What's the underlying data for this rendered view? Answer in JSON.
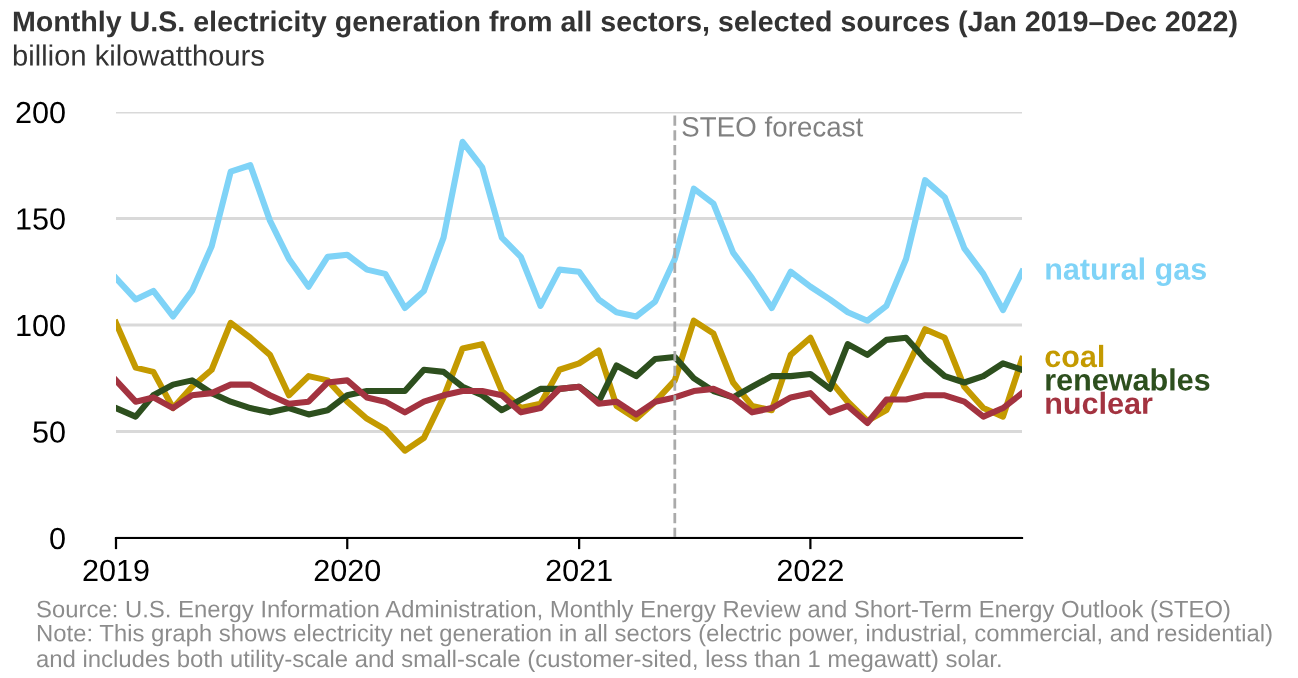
{
  "chart_data": {
    "type": "line",
    "title": "Monthly U.S. electricity generation from all sectors, selected sources (Jan 2019–Dec 2022)",
    "ylabel": "billion kilowatthours",
    "x": [
      "2019-01",
      "2019-02",
      "2019-03",
      "2019-04",
      "2019-05",
      "2019-06",
      "2019-07",
      "2019-08",
      "2019-09",
      "2019-10",
      "2019-11",
      "2019-12",
      "2020-01",
      "2020-02",
      "2020-03",
      "2020-04",
      "2020-05",
      "2020-06",
      "2020-07",
      "2020-08",
      "2020-09",
      "2020-10",
      "2020-11",
      "2020-12",
      "2021-01",
      "2021-02",
      "2021-03",
      "2021-04",
      "2021-05",
      "2021-06",
      "2021-07",
      "2021-08",
      "2021-09",
      "2021-10",
      "2021-11",
      "2021-12",
      "2022-01",
      "2022-02",
      "2022-03",
      "2022-04",
      "2022-05",
      "2022-06",
      "2022-07",
      "2022-08",
      "2022-09",
      "2022-10",
      "2022-11",
      "2022-12"
    ],
    "series": [
      {
        "name": "natural gas",
        "color": "#7fd3f7",
        "values": [
          122,
          112,
          116,
          104,
          116,
          137,
          172,
          175,
          149,
          131,
          118,
          132,
          133,
          126,
          124,
          108,
          116,
          141,
          186,
          174,
          141,
          132,
          109,
          126,
          125,
          112,
          106,
          104,
          111,
          131,
          164,
          157,
          134,
          122,
          108,
          125,
          118,
          112,
          106,
          102,
          109,
          131,
          168,
          160,
          136,
          124,
          107,
          125
        ]
      },
      {
        "name": "coal",
        "color": "#c49a00",
        "values": [
          101,
          80,
          78,
          61,
          71,
          79,
          101,
          94,
          86,
          67,
          76,
          74,
          64,
          56,
          51,
          41,
          47,
          66,
          89,
          91,
          69,
          61,
          63,
          79,
          82,
          88,
          62,
          56,
          64,
          74,
          102,
          96,
          73,
          62,
          60,
          86,
          94,
          74,
          64,
          55,
          60,
          79,
          98,
          94,
          71,
          61,
          57,
          84
        ]
      },
      {
        "name": "renewables",
        "color": "#2d4f1e",
        "values": [
          61,
          57,
          67,
          72,
          74,
          68,
          64,
          61,
          59,
          61,
          58,
          60,
          67,
          69,
          69,
          69,
          79,
          78,
          71,
          67,
          60,
          65,
          70,
          70,
          71,
          64,
          81,
          76,
          84,
          85,
          75,
          69,
          66,
          71,
          76,
          76,
          77,
          70,
          91,
          86,
          93,
          94,
          84,
          76,
          73,
          76,
          82,
          79
        ]
      },
      {
        "name": "nuclear",
        "color": "#a33340",
        "values": [
          74,
          64,
          66,
          61,
          67,
          68,
          72,
          72,
          67,
          63,
          64,
          73,
          74,
          66,
          64,
          59,
          64,
          67,
          69,
          69,
          67,
          59,
          61,
          70,
          71,
          63,
          64,
          58,
          64,
          66,
          69,
          70,
          66,
          59,
          61,
          66,
          68,
          59,
          62,
          54,
          65,
          65,
          67,
          67,
          64,
          57,
          61,
          68
        ]
      }
    ],
    "xlim": [
      "2019-01",
      "2022-12"
    ],
    "xticks": [
      {
        "value": "2019-01",
        "label": "2019"
      },
      {
        "value": "2020-01",
        "label": "2020"
      },
      {
        "value": "2021-01",
        "label": "2021"
      },
      {
        "value": "2022-01",
        "label": "2022"
      }
    ],
    "ylim": [
      0,
      200
    ],
    "yticks": [
      0,
      50,
      100,
      150,
      200
    ],
    "grid": "y",
    "legend": false,
    "marker": "none",
    "line_style": "solid",
    "ref_lines": [
      {
        "axis": "x",
        "value": "2021-06",
        "label": "STEO forecast",
        "color": "#aaaaaa",
        "line_style": "dashed"
      }
    ],
    "annotations": [
      "Source: U.S. Energy Information Administration, Monthly Energy Review and Short-Term Energy Outlook (STEO)",
      "Note: This graph shows electricity net generation in all sectors (electric power, industrial, commercial, and residential) and includes both utility-scale and small-scale (customer-sited, less than 1 megawatt) solar."
    ]
  }
}
